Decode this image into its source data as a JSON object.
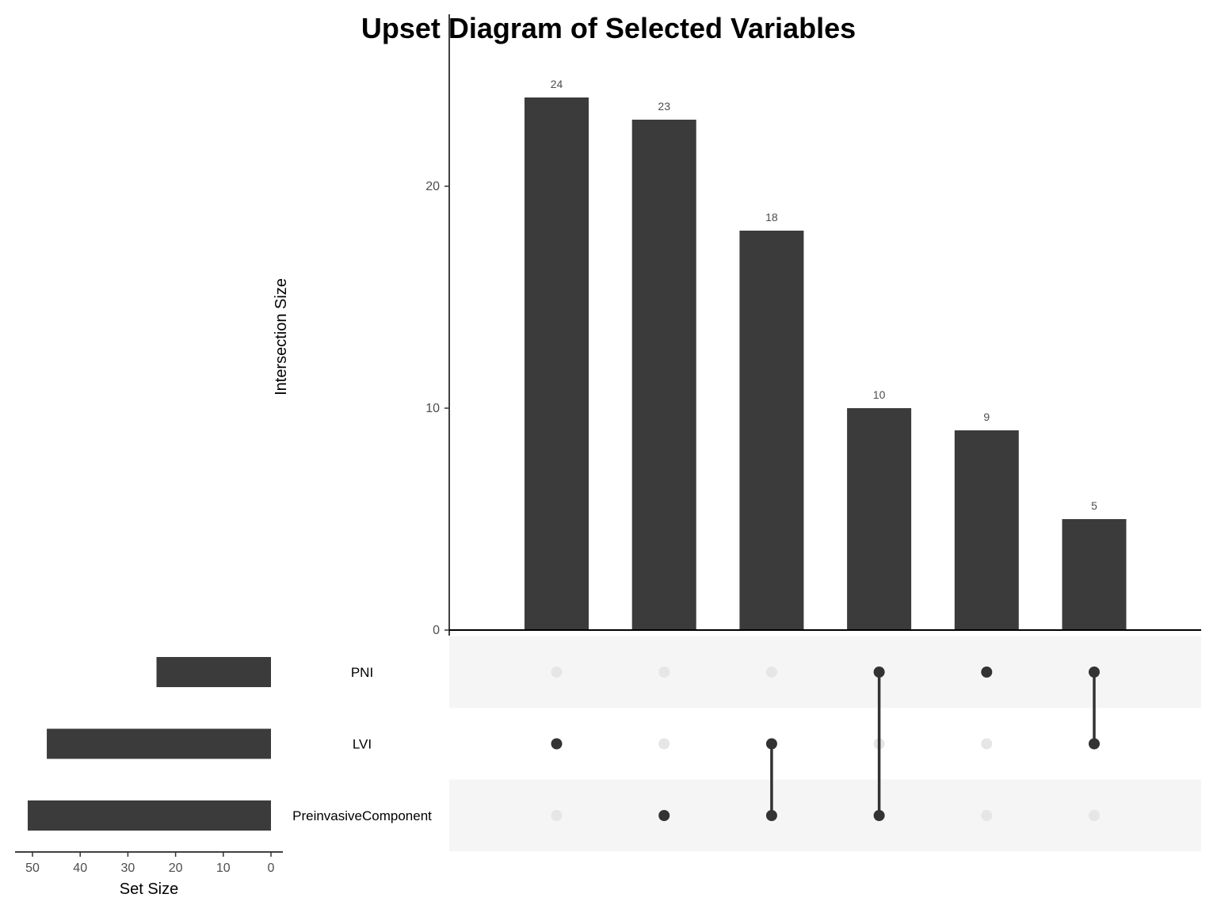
{
  "chart_data": {
    "type": "upset",
    "title": "Upset Diagram of Selected Variables",
    "intersection_axis": {
      "label": "Intersection Size",
      "ticks": [
        "0",
        "10",
        "20"
      ],
      "tick_values": [
        0,
        10,
        20
      ],
      "ylim": [
        0,
        27
      ]
    },
    "set_size_axis": {
      "label": "Set Size",
      "ticks": [
        "50",
        "40",
        "30",
        "20",
        "10",
        "0"
      ],
      "tick_values": [
        50,
        40,
        30,
        20,
        10,
        0
      ],
      "xlim": [
        53,
        0
      ]
    },
    "sets": [
      {
        "name": "PNI",
        "size": 24
      },
      {
        "name": "LVI",
        "size": 47
      },
      {
        "name": "PreinvasiveComponent",
        "size": 51
      }
    ],
    "intersections": [
      {
        "label": "24",
        "value": 24,
        "members": [
          "LVI"
        ]
      },
      {
        "label": "23",
        "value": 23,
        "members": [
          "PreinvasiveComponent"
        ]
      },
      {
        "label": "18",
        "value": 18,
        "members": [
          "LVI",
          "PreinvasiveComponent"
        ]
      },
      {
        "label": "10",
        "value": 10,
        "members": [
          "PNI",
          "PreinvasiveComponent"
        ]
      },
      {
        "label": "9",
        "value": 9,
        "members": [
          "PNI"
        ]
      },
      {
        "label": "5",
        "value": 5,
        "members": [
          "PNI",
          "LVI"
        ]
      }
    ],
    "colors": {
      "bar": "#3b3b3b",
      "dot_active": "#333333",
      "dot_inactive": "#e6e6e6",
      "stripe": "#f5f5f5",
      "axis": "#000000"
    },
    "grid": false,
    "legend": "none"
  }
}
